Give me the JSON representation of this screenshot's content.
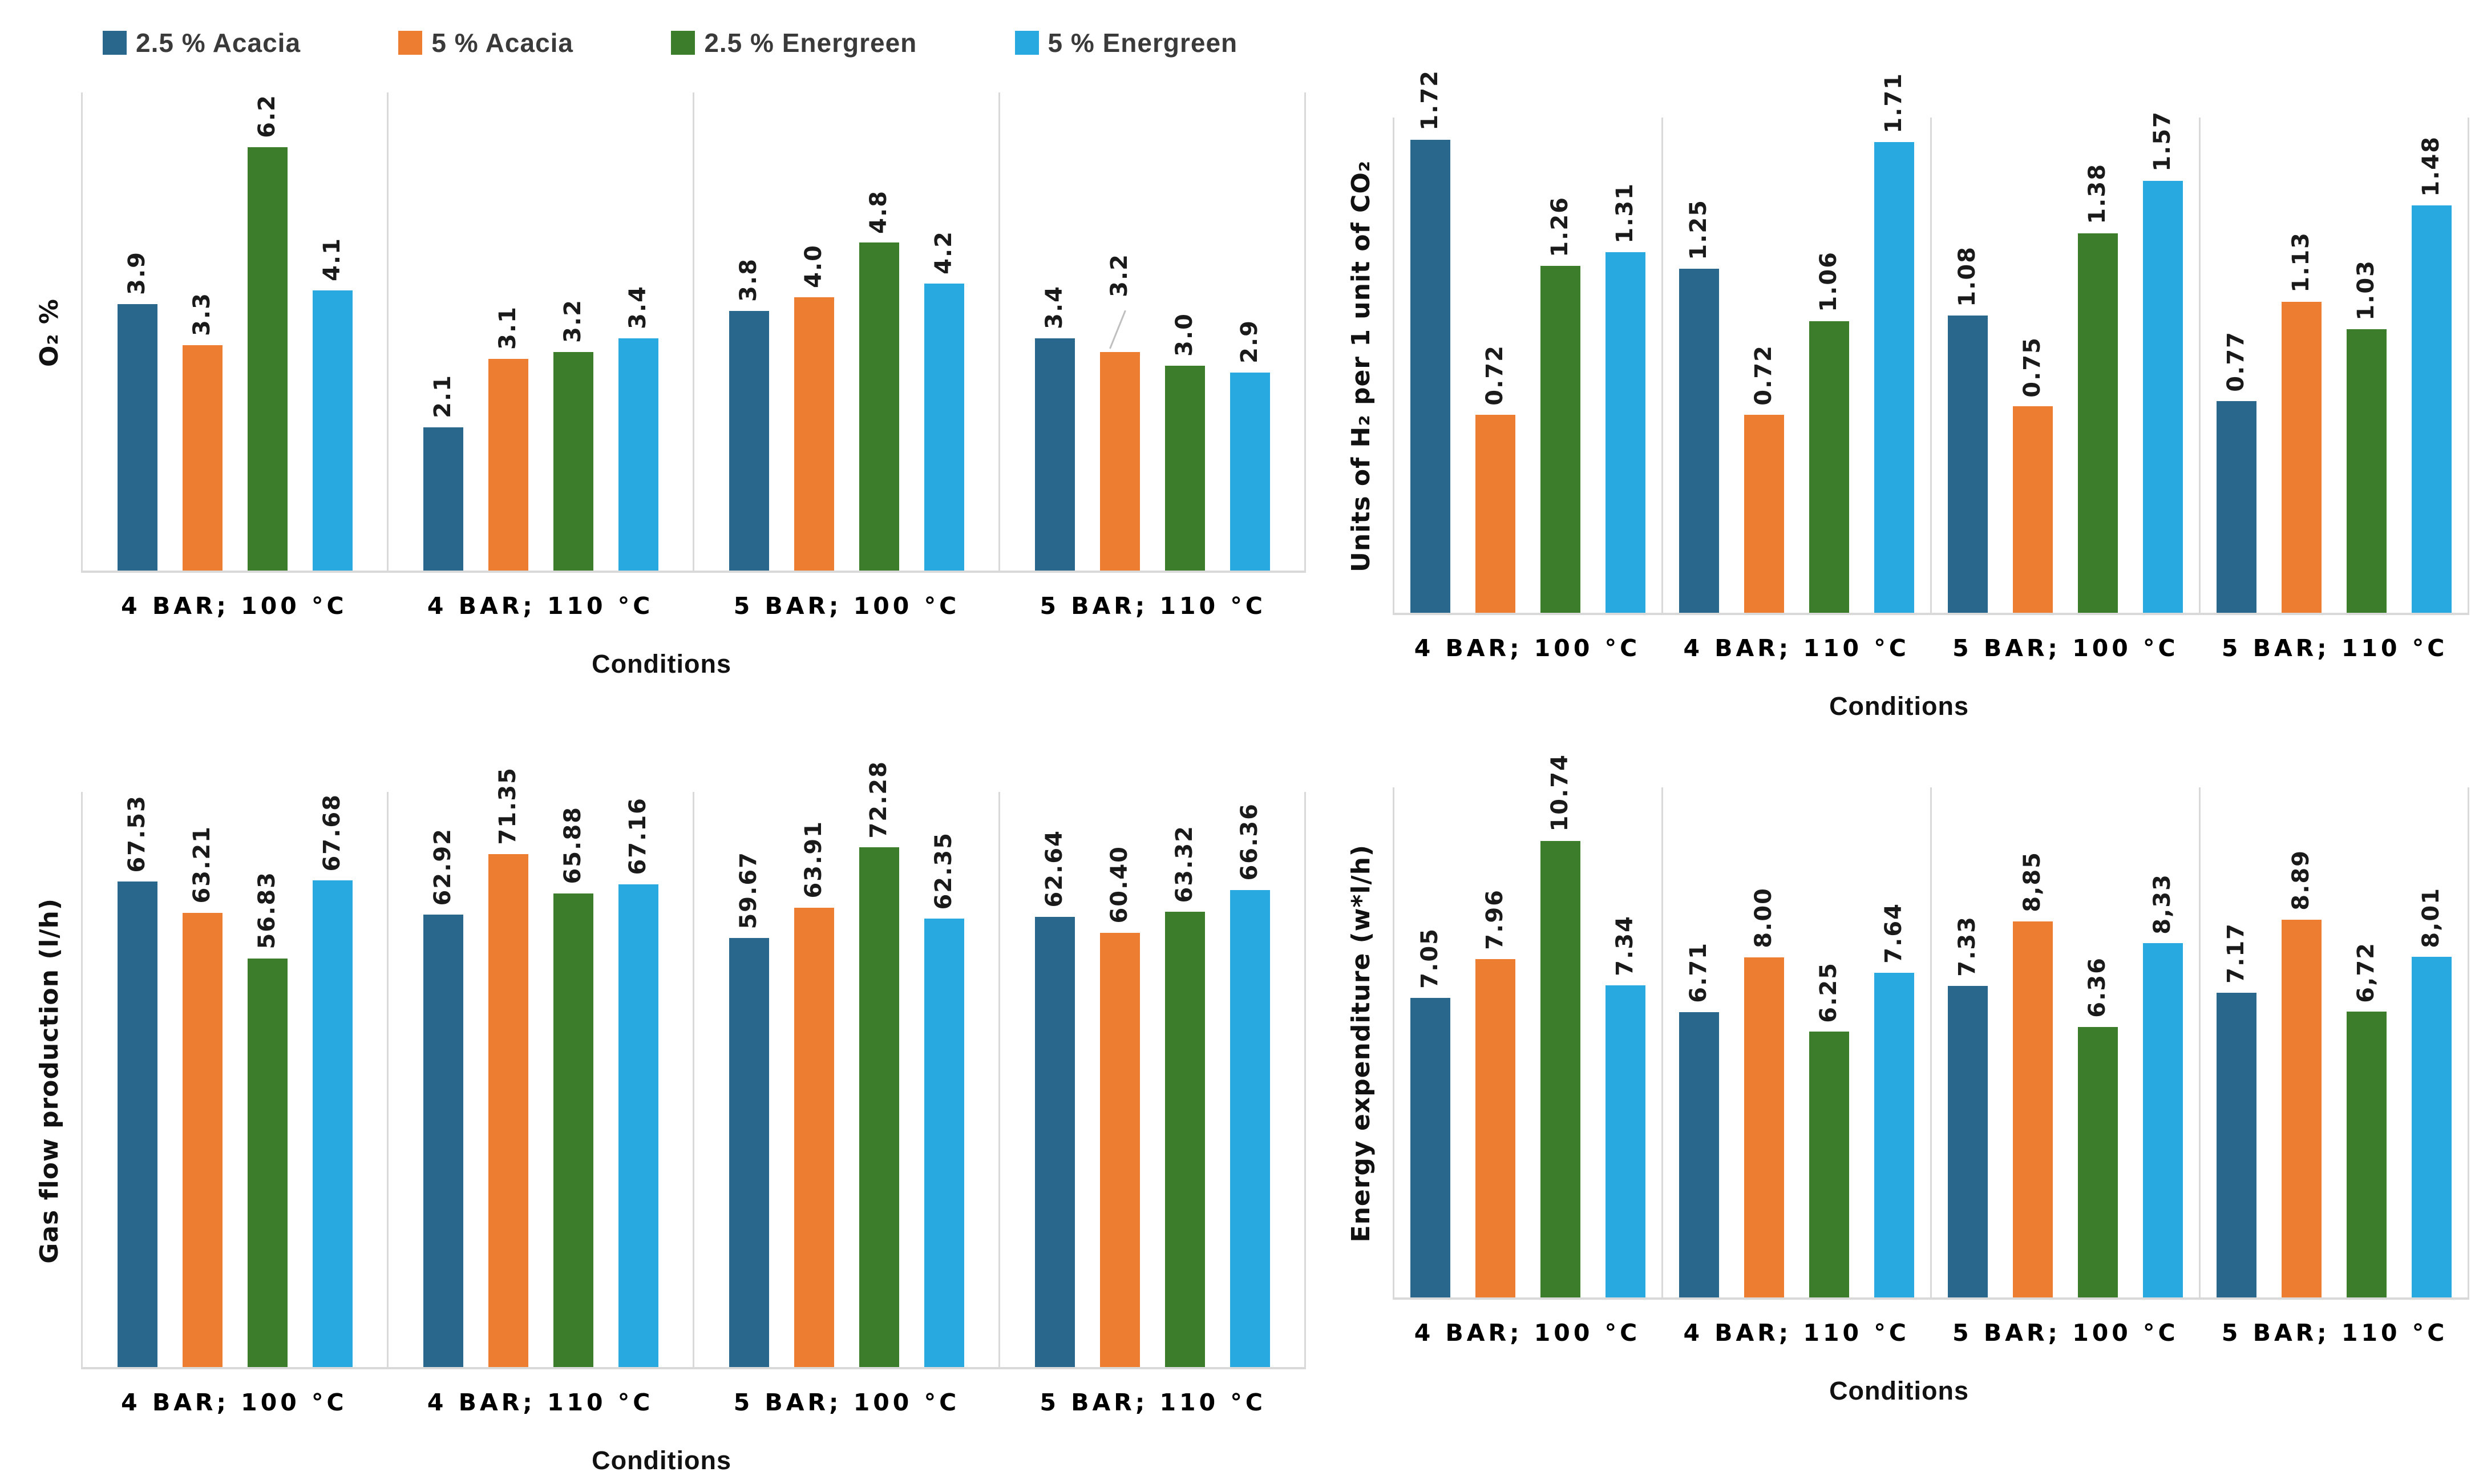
{
  "series_colors": [
    "#2A678C",
    "#ED7D31",
    "#3B7D2B",
    "#28A9E0"
  ],
  "grid_color": "#D9D9D9",
  "legend": {
    "items": [
      {
        "label": "2.5 % Acacia",
        "color": "#2A678C"
      },
      {
        "label": "5 % Acacia",
        "color": "#ED7D31"
      },
      {
        "label": "2.5 % Energreen",
        "color": "#3B7D2B"
      },
      {
        "label": "5 % Energreen",
        "color": "#28A9E0"
      }
    ]
  },
  "chart_data": [
    {
      "type": "bar",
      "position": "top-left",
      "ylabel": "O₂ %",
      "xlabel": "Conditions",
      "ymax": 7,
      "grid": "category-dividers-only",
      "legend_position": "top",
      "categories": [
        "4 BAR; 100 °C",
        "4 BAR; 110 °C",
        "5 BAR; 100 °C",
        "5 BAR; 110 °C"
      ],
      "series": [
        {
          "name": "2.5 % Acacia",
          "values": [
            3.9,
            2.1,
            3.8,
            3.4
          ]
        },
        {
          "name": "5 % Acacia",
          "values": [
            3.3,
            3.1,
            4.0,
            3.2
          ]
        },
        {
          "name": "2.5 % Energreen",
          "values": [
            6.2,
            3.2,
            4.8,
            3.0
          ]
        },
        {
          "name": "5 % Energreen",
          "values": [
            4.1,
            3.4,
            4.2,
            2.9
          ]
        }
      ],
      "label_texts": [
        [
          "3.9",
          "2.1",
          "3.8",
          "3.4"
        ],
        [
          "3.3",
          "3.1",
          "4.0",
          "3.2"
        ],
        [
          "6.2",
          "3.2",
          "4.8",
          "3.0"
        ],
        [
          "4.1",
          "3.4",
          "4.2",
          "2.9"
        ]
      ],
      "leader_lines": [
        {
          "category": 3,
          "series": 1
        }
      ]
    },
    {
      "type": "bar",
      "position": "top-right",
      "ylabel": "Units of H₂ per 1 unit of CO₂",
      "xlabel": "Conditions",
      "ymax": 1.8,
      "grid": "category-dividers-only",
      "legend_position": "none",
      "categories": [
        "4 BAR; 100 °C",
        "4 BAR; 110 °C",
        "5 BAR; 100 °C",
        "5 BAR; 110 °C"
      ],
      "series": [
        {
          "name": "2.5 % Acacia",
          "values": [
            1.72,
            1.25,
            1.08,
            0.77
          ]
        },
        {
          "name": "5 % Acacia",
          "values": [
            0.72,
            0.72,
            0.75,
            1.13
          ]
        },
        {
          "name": "2.5 % Energreen",
          "values": [
            1.26,
            1.06,
            1.38,
            1.03
          ]
        },
        {
          "name": "5 % Energreen",
          "values": [
            1.31,
            1.71,
            1.57,
            1.48
          ]
        }
      ],
      "label_texts": [
        [
          "1.72",
          "1.25",
          "1.08",
          "0.77"
        ],
        [
          "0.72",
          "0.72",
          "0.75",
          "1.13"
        ],
        [
          "1.26",
          "1.06",
          "1.38",
          "1.03"
        ],
        [
          "1.31",
          "1.71",
          "1.57",
          "1.48"
        ]
      ],
      "leader_lines": []
    },
    {
      "type": "bar",
      "position": "bottom-left",
      "ylabel": "Gas flow production (l/h)",
      "xlabel": "Conditions",
      "ymax": 80,
      "grid": "category-dividers-only",
      "legend_position": "none",
      "categories": [
        "4 BAR; 100 °C",
        "4 BAR; 110 °C",
        "5 BAR; 100 °C",
        "5 BAR; 110 °C"
      ],
      "series": [
        {
          "name": "2.5 % Acacia",
          "values": [
            67.53,
            62.92,
            59.67,
            62.64
          ]
        },
        {
          "name": "5 % Acacia",
          "values": [
            63.21,
            71.35,
            63.91,
            60.4
          ]
        },
        {
          "name": "2.5 % Energreen",
          "values": [
            56.83,
            65.88,
            72.28,
            63.32
          ]
        },
        {
          "name": "5 % Energreen",
          "values": [
            67.68,
            67.16,
            62.35,
            66.36
          ]
        }
      ],
      "label_texts": [
        [
          "67.53",
          "62.92",
          "59.67",
          "62.64"
        ],
        [
          "63.21",
          "71.35",
          "63.91",
          "60.40"
        ],
        [
          "56.83",
          "65.88",
          "72.28",
          "63.32"
        ],
        [
          "67.68",
          "67.16",
          "62.35",
          "66.36"
        ]
      ],
      "leader_lines": []
    },
    {
      "type": "bar",
      "position": "bottom-right",
      "ylabel": "Energy expenditure (w*l/h)",
      "xlabel": "Conditions",
      "ymax": 12,
      "grid": "category-dividers-only",
      "legend_position": "none",
      "categories": [
        "4 BAR; 100 °C",
        "4 BAR; 110 °C",
        "5 BAR; 100 °C",
        "5 BAR; 110 °C"
      ],
      "series": [
        {
          "name": "2.5 % Acacia",
          "values": [
            7.05,
            6.71,
            7.33,
            7.17
          ]
        },
        {
          "name": "5 % Acacia",
          "values": [
            7.96,
            8.0,
            8.85,
            8.89
          ]
        },
        {
          "name": "2.5 % Energreen",
          "values": [
            10.74,
            6.25,
            6.36,
            6.72
          ]
        },
        {
          "name": "5 % Energreen",
          "values": [
            7.34,
            7.64,
            8.33,
            8.01
          ]
        }
      ],
      "label_texts": [
        [
          "7.05",
          "6.71",
          "7.33",
          "7.17"
        ],
        [
          "7.96",
          "8.00",
          "8,85",
          "8.89"
        ],
        [
          "10.74",
          "6.25",
          "6.36",
          "6,72"
        ],
        [
          "7.34",
          "7.64",
          "8,33",
          "8,01"
        ]
      ],
      "leader_lines": []
    }
  ]
}
